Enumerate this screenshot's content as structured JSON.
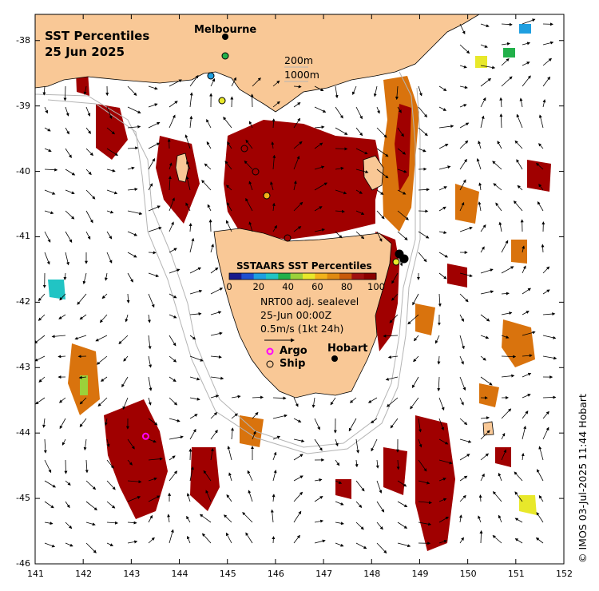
{
  "title": {
    "line1": "SST Percentiles",
    "line2": "25 Jun 2025"
  },
  "cities": [
    {
      "name": "Melbourne",
      "lon": 144.96,
      "lat": -37.81
    },
    {
      "name": "Hobart",
      "lon": 147.33,
      "lat": -42.88
    }
  ],
  "isobath_legend": {
    "line1": "200m",
    "line2": "1000m"
  },
  "colorbar": {
    "title": "SSTAARS SST Percentiles",
    "ticks": [
      "0",
      "20",
      "40",
      "60",
      "80",
      "100"
    ],
    "colors": [
      "#1a1a8c",
      "#1f4fd1",
      "#1f9fe0",
      "#21c4c4",
      "#22b04a",
      "#9bd13a",
      "#e8e82a",
      "#f2b21a",
      "#e08a10",
      "#c85a0a",
      "#a01010",
      "#8b0000"
    ]
  },
  "current_info": {
    "line1": "NRT00 adj. sealevel",
    "line2": "25-Jun 00:00Z",
    "line3": "0.5m/s (1kt 24h)"
  },
  "legend": {
    "argo": "Argo",
    "ship": "Ship"
  },
  "axes": {
    "x_ticks": [
      "141",
      "142",
      "143",
      "144",
      "145",
      "146",
      "147",
      "148",
      "149",
      "150",
      "151",
      "152"
    ],
    "y_ticks": [
      "-38",
      "-39",
      "-40",
      "-41",
      "-42",
      "-43",
      "-44",
      "-45",
      "-46"
    ],
    "lon_range": [
      141,
      152
    ],
    "lat_range": [
      -46,
      -37.6
    ]
  },
  "argo_floats": [
    {
      "lon": 143.3,
      "lat": -44.05
    }
  ],
  "credit": "© IMOS 03-Jul-2025 11:44 Hobart",
  "colors": {
    "land": "#f9c896",
    "hot": "#a00000",
    "warm": "#d9730d",
    "isobath": "#b4b4b4"
  }
}
